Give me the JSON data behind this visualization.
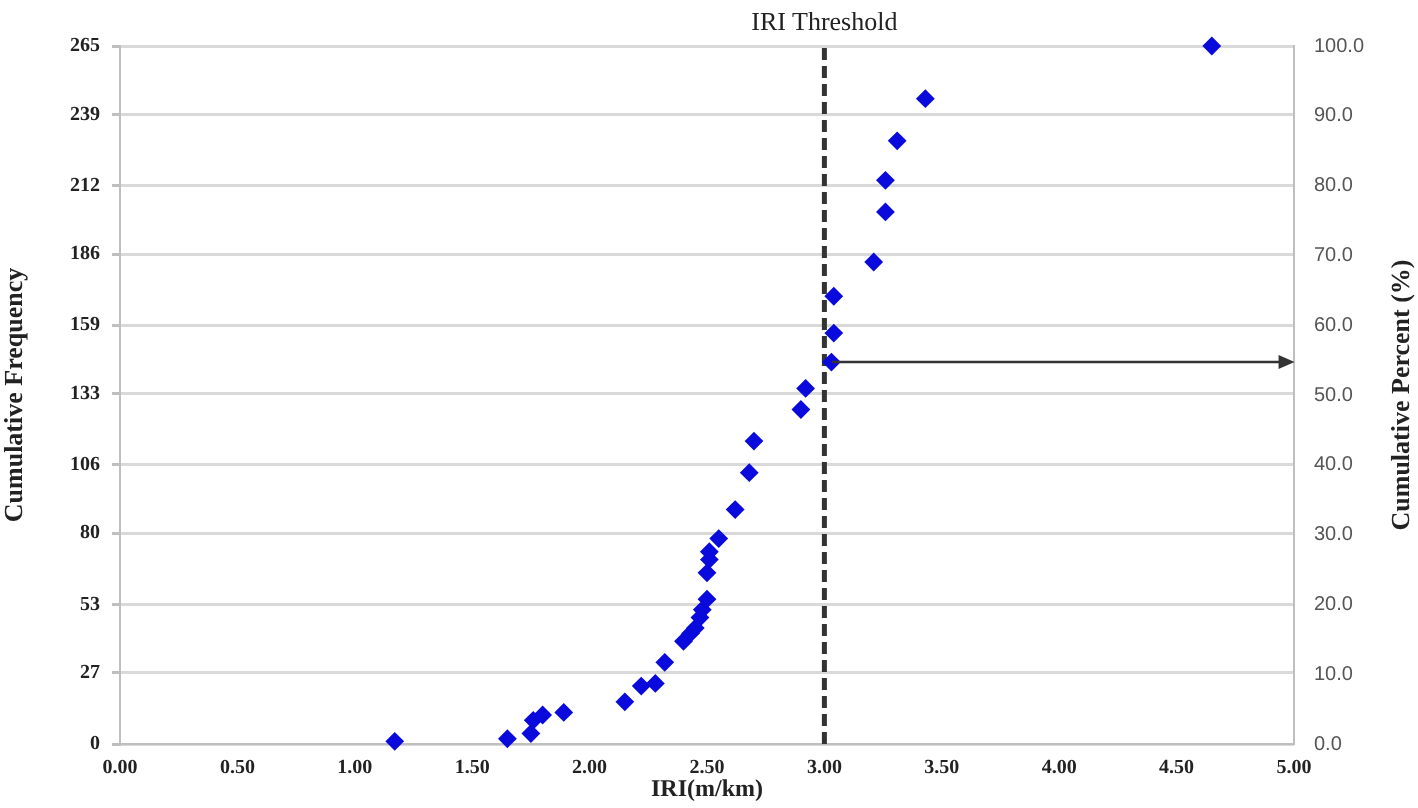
{
  "chart_data": {
    "type": "scatter",
    "xlabel": "IRI(m/km)",
    "ylabel": "Cumulative Frequency",
    "y2label": "Cumulative Percent (%)",
    "x": [
      1.17,
      1.65,
      1.75,
      1.76,
      1.8,
      1.89,
      2.15,
      2.22,
      2.28,
      2.32,
      2.4,
      2.43,
      2.45,
      2.47,
      2.48,
      2.5,
      2.5,
      2.51,
      2.51,
      2.55,
      2.62,
      2.68,
      2.7,
      2.9,
      2.92,
      3.03,
      3.04,
      3.04,
      3.21,
      3.26,
      3.26,
      3.31,
      3.43,
      4.65
    ],
    "values": [
      1,
      2,
      4,
      9,
      11,
      12,
      16,
      22,
      23,
      31,
      39,
      42,
      44,
      48,
      51,
      55,
      65,
      70,
      73,
      78,
      89,
      103,
      115,
      127,
      135,
      145,
      156,
      170,
      183,
      202,
      214,
      229,
      245,
      265
    ],
    "color": "#0a0adc",
    "marker": "diamond",
    "grid": "y",
    "xlim": [
      0,
      5
    ],
    "xticks": [
      {
        "value": 0,
        "label": "0.00"
      },
      {
        "value": 0.5,
        "label": "0.50"
      },
      {
        "value": 1,
        "label": "1.00"
      },
      {
        "value": 1.5,
        "label": "1.50"
      },
      {
        "value": 2,
        "label": "2.00"
      },
      {
        "value": 2.5,
        "label": "2.50"
      },
      {
        "value": 3,
        "label": "3.00"
      },
      {
        "value": 3.5,
        "label": "3.50"
      },
      {
        "value": 4,
        "label": "4.00"
      },
      {
        "value": 4.5,
        "label": "4.50"
      },
      {
        "value": 5,
        "label": "5.00"
      }
    ],
    "ylim": [
      0,
      265
    ],
    "yticks": [
      0,
      27,
      53,
      80,
      106,
      133,
      159,
      186,
      212,
      239,
      265
    ],
    "y2lim": [
      0,
      100
    ],
    "y2ticks": [
      {
        "value": 0,
        "label": "0.0"
      },
      {
        "value": 10,
        "label": "10.0"
      },
      {
        "value": 20,
        "label": "20.0"
      },
      {
        "value": 30,
        "label": "30.0"
      },
      {
        "value": 40,
        "label": "40.0"
      },
      {
        "value": 50,
        "label": "50.0"
      },
      {
        "value": 60,
        "label": "60.0"
      },
      {
        "value": 70,
        "label": "70.0"
      },
      {
        "value": 80,
        "label": "80.0"
      },
      {
        "value": 90,
        "label": "90.0"
      },
      {
        "value": 100,
        "label": "100.0"
      }
    ],
    "ref_lines": [
      {
        "axis": "x",
        "value": 3,
        "label": "IRI Threshold",
        "color": "#333333",
        "line_style": "dashed"
      }
    ]
  }
}
